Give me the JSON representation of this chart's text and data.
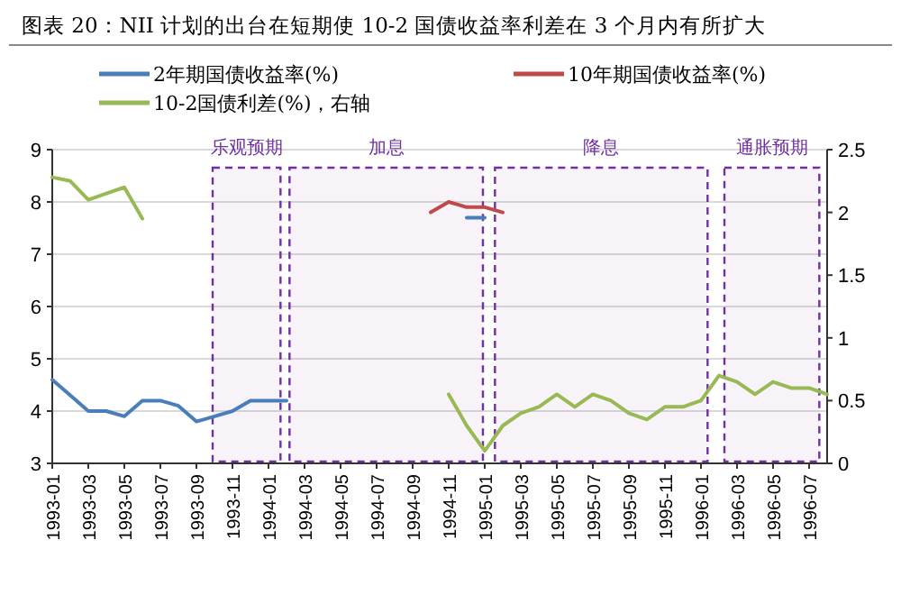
{
  "chart_data": {
    "type": "line",
    "title": "图表 20：NII 计划的出台在短期使 10-2 国债收益率利差在 3 个月内有所扩大",
    "x": [
      "1993-01",
      "1993-02",
      "1993-03",
      "1993-04",
      "1993-05",
      "1993-06",
      "1993-07",
      "1993-08",
      "1993-09",
      "1993-10",
      "1993-11",
      "1993-12",
      "1994-01",
      "1994-02",
      "1994-10",
      "1994-11",
      "1994-12",
      "1995-01",
      "1995-02",
      "1995-03",
      "1995-04",
      "1995-05",
      "1995-06",
      "1995-07",
      "1995-08",
      "1995-09",
      "1995-10",
      "1995-11",
      "1995-12",
      "1996-01",
      "1996-02",
      "1996-03",
      "1996-04",
      "1996-05",
      "1996-06",
      "1996-07",
      "1996-08"
    ],
    "series": [
      {
        "name": "2年期国债收益率(%)",
        "color": "#4a7ebb",
        "values": [
          4.6,
          4.3,
          4.0,
          4.0,
          3.9,
          4.2,
          4.2,
          4.1,
          3.8,
          3.9,
          4.0,
          4.2,
          4.2,
          4.2,
          null,
          null,
          7.7,
          7.7,
          null,
          null,
          null,
          null,
          null,
          null,
          null,
          null,
          null,
          null,
          null,
          null,
          null,
          null,
          null,
          null,
          null,
          null,
          null
        ]
      },
      {
        "name": "10年期国债收益率(%)",
        "color": "#be4b48",
        "values": [
          null,
          null,
          null,
          null,
          null,
          null,
          null,
          null,
          null,
          null,
          null,
          null,
          null,
          null,
          7.8,
          8.0,
          7.9,
          7.9,
          7.8,
          null,
          null,
          null,
          null,
          null,
          null,
          null,
          null,
          null,
          null,
          null,
          null,
          null,
          null,
          null,
          null,
          null,
          null
        ]
      },
      {
        "name": "10-2国债利差(%)，右轴",
        "color": "#98b954",
        "axis": "y2",
        "values": [
          2.28,
          2.25,
          2.1,
          2.15,
          2.2,
          1.95,
          null,
          null,
          null,
          null,
          null,
          null,
          null,
          null,
          null,
          0.55,
          0.3,
          0.1,
          0.3,
          0.4,
          0.45,
          0.55,
          0.45,
          0.55,
          0.5,
          0.4,
          0.35,
          0.45,
          0.45,
          0.5,
          0.7,
          0.65,
          0.55,
          0.65,
          0.6,
          0.6,
          0.55
        ]
      }
    ],
    "xlim": [
      "1993-01",
      "1996-08"
    ],
    "xticks": [
      "1993-01",
      "1993-03",
      "1993-05",
      "1993-07",
      "1993-09",
      "1993-11",
      "1994-01",
      "1994-03",
      "1994-05",
      "1994-07",
      "1994-09",
      "1994-11",
      "1995-01",
      "1995-03",
      "1995-05",
      "1995-07",
      "1995-09",
      "1995-11",
      "1996-01",
      "1996-03",
      "1996-05",
      "1996-07"
    ],
    "ylim": [
      3,
      9
    ],
    "yticks": [
      3,
      4,
      5,
      6,
      7,
      8,
      9
    ],
    "y2lim": [
      0,
      2.5
    ],
    "y2ticks": [
      0,
      0.5,
      1,
      1.5,
      2,
      2.5
    ],
    "grid": "y",
    "legend": "top",
    "marker": "none",
    "line_style": "solid",
    "bands": [
      {
        "axis": "x",
        "from": "1993-09-28",
        "to": "1994-01-21",
        "label": "乐观预期",
        "color": "#7030a0"
      },
      {
        "axis": "x",
        "from": "1994-02-06",
        "to": "1994-12-28",
        "label": "加息",
        "color": "#7030a0"
      },
      {
        "axis": "x",
        "from": "1995-01-18",
        "to": "1996-01-12",
        "label": "降息",
        "color": "#7030a0"
      },
      {
        "axis": "x",
        "from": "1996-02-10",
        "to": "1996-07-18",
        "label": "通胀预期",
        "color": "#7030a0"
      }
    ]
  }
}
